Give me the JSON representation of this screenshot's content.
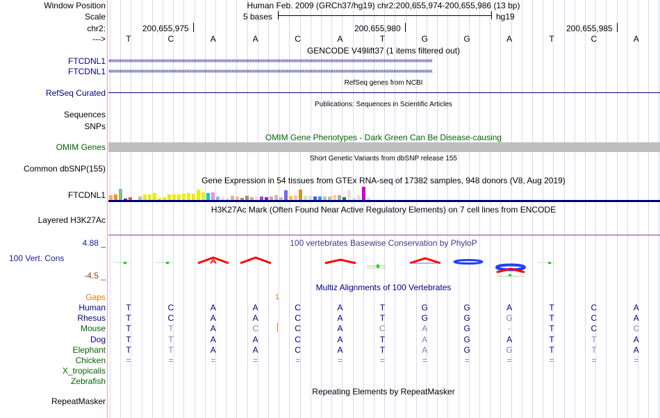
{
  "header": {
    "window_position_label": "Window Position",
    "window_position": "Human Feb. 2009 (GRCh37/hg19)   chr2:200,655,974-200,655,986 (13 bp)",
    "scale_label": "Scale",
    "scale_text": "5 bases",
    "assembly": "hg19",
    "chr_label": "chr2:",
    "coords": [
      "200,655,975",
      "200,655,980",
      "200,655,985"
    ],
    "strand_label": "--->",
    "bases": [
      "T",
      "C",
      "A",
      "A",
      "C",
      "A",
      "T",
      "G",
      "G",
      "A",
      "T",
      "C",
      "A"
    ]
  },
  "tracks": {
    "gencode": {
      "title": "GENCODE V49lift37 (1 items filtered out)",
      "items": [
        "FTCDNL1",
        "FTCDNL1"
      ]
    },
    "refseq": {
      "label": "RefSeq Curated",
      "title": "RefSeq genes from NCBI"
    },
    "pubs": {
      "title": "Publications: Sequences in Scientific Articles",
      "labels": [
        "Sequences",
        "SNPs"
      ]
    },
    "omim": {
      "label": "OMIM Genes",
      "title": "OMIM Gene Phenotypes - Dark Green Can Be Disease-causing"
    },
    "dbsnp": {
      "label": "Common dbSNP(155)",
      "title": "Short Genetic Variants from dbSNP release 155"
    },
    "gtex": {
      "label": "FTCDNL1",
      "title": "Gene Expression in 54 tissues from GTEx RNA-seq of 17382 samples, 948 donors (V8, Aug 2019)",
      "values": [
        9,
        10,
        19,
        3,
        5,
        1,
        7,
        10,
        10,
        12,
        4,
        5,
        10,
        10,
        10,
        11,
        12,
        11,
        18,
        13,
        12,
        13,
        7,
        5,
        4,
        8,
        7,
        4,
        8,
        6,
        7,
        7,
        6,
        7,
        9,
        5,
        16,
        8,
        9,
        18,
        8,
        8,
        7,
        7,
        7,
        7,
        9,
        9,
        5,
        16,
        4,
        9,
        22,
        5
      ],
      "colors": [
        "#FFAA66",
        "#EE9911",
        "#88BB88",
        "#991166",
        "#EE5544",
        "#FF0000",
        "#CCBBAA",
        "#EEEE00",
        "#EEEE00",
        "#EEEE00",
        "#EEEE00",
        "#EEEE00",
        "#EEEE00",
        "#EEEE00",
        "#EEEE00",
        "#EEEE00",
        "#EEEE00",
        "#EEEE00",
        "#EEEE00",
        "#EEEE00",
        "#00CCCC",
        "#EE88EE",
        "#99BBCC",
        "#EEDDDD",
        "#EEDDDD",
        "#CCBBAA",
        "#FFBB88",
        "#AA8866",
        "#AA8866",
        "#CCAA99",
        "#EEDDDD",
        "#AA44CC",
        "#7733AA",
        "#CCAA99",
        "#CCBBAA",
        "#CCBBAA",
        "#7766EE",
        "#FFCC00",
        "#FFBBCC",
        "#CC9922",
        "#BBEEBB",
        "#DDDDDD",
        "#3366DD",
        "#2299FF",
        "#CCBBAA",
        "#CCBBAA",
        "#FFCC99",
        "#AAAAAA",
        "#008844",
        "#EEDDDD",
        "#DDDDDD",
        "#EEDDDD",
        "#CC00CC",
        "#EEDDDD"
      ]
    },
    "h3k27ac": {
      "label": "Layered H3K27Ac",
      "title": "H3K27Ac Mark (Often Found Near Active Regulatory Elements) on 7 cell lines from ENCODE"
    },
    "phylop": {
      "label": "100 Vert. Cons",
      "title": "100 vertebrates Basewise Conservation by PhyloP",
      "max": "4.88 _",
      "min": "-4.5 _"
    },
    "multiz": {
      "title": "Multiz Alignments of 100 Vertebrates",
      "gaps_label": "Gaps",
      "gap_value": "1",
      "species": [
        {
          "name": "Human",
          "color": "#000080",
          "bases": [
            "T",
            "C",
            "A",
            "A",
            "C",
            "A",
            "T",
            "G",
            "G",
            "A",
            "T",
            "C",
            "A"
          ],
          "dim": []
        },
        {
          "name": "Rhesus",
          "color": "#000080",
          "bases": [
            "T",
            "C",
            "A",
            "A",
            "C",
            "A",
            "T",
            "G",
            "G",
            "G",
            "T",
            "C",
            "A"
          ],
          "dim": [
            9
          ]
        },
        {
          "name": "Mouse",
          "color": "#006400",
          "bases": [
            "T",
            "T",
            "A",
            "C",
            "C",
            "A",
            "C",
            "A",
            "G",
            "-",
            "T",
            "C",
            "C"
          ],
          "dim": [
            1,
            3,
            6,
            7,
            9,
            12
          ]
        },
        {
          "name": "Dog",
          "color": "#000080",
          "bases": [
            "T",
            "T",
            "A",
            "A",
            "C",
            "A",
            "T",
            "A",
            "G",
            "A",
            "T",
            "T",
            "A"
          ],
          "dim": [
            1,
            7,
            11
          ]
        },
        {
          "name": "Elephant",
          "color": "#006400",
          "bases": [
            "T",
            "T",
            "A",
            "A",
            "C",
            "A",
            "T",
            "A",
            "G",
            "G",
            "T",
            "T",
            "A"
          ],
          "dim": [
            1,
            7,
            9,
            11
          ]
        },
        {
          "name": "Chicken",
          "color": "#006400",
          "bases": [
            "=",
            "=",
            "=",
            "=",
            "=",
            "=",
            "=",
            "=",
            "=",
            "=",
            "=",
            "=",
            "="
          ],
          "dim": [
            0,
            1,
            2,
            3,
            4,
            5,
            6,
            7,
            8,
            9,
            10,
            11,
            12
          ]
        },
        {
          "name": "X_tropicalis",
          "color": "#006400",
          "bases": [],
          "dim": []
        },
        {
          "name": "Zebrafish",
          "color": "#006400",
          "bases": [],
          "dim": []
        }
      ]
    },
    "repeatmasker": {
      "label": "RepeatMasker",
      "title": "Repeating Elements by RepeatMasker"
    }
  }
}
